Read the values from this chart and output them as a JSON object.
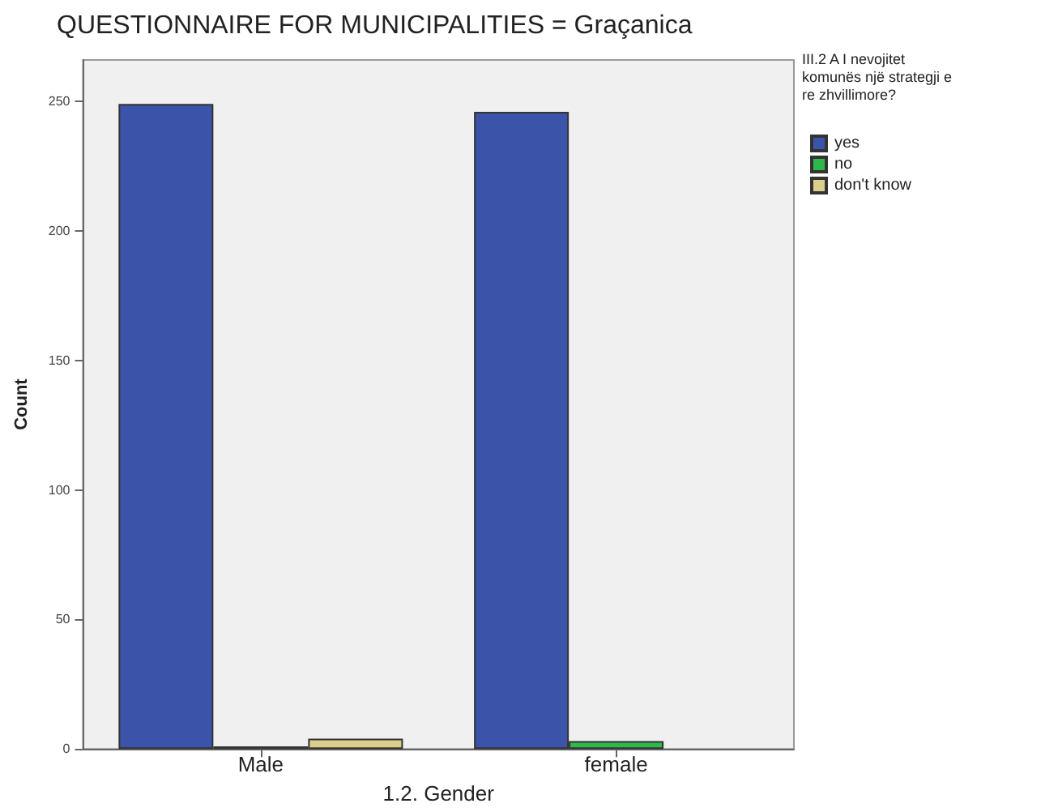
{
  "chart_data": {
    "type": "bar",
    "title": "QUESTIONNAIRE FOR MUNICIPALITIES = Graçanica",
    "xlabel": "1.2. Gender",
    "ylabel": "Count",
    "legend_title": "III.2 A I nevojitet\nkomunës një strategji e\nre zhvillimore?",
    "categories": [
      "Male",
      "female"
    ],
    "series": [
      {
        "name": "yes",
        "color": "#3b54a9",
        "values": [
          249,
          246
        ]
      },
      {
        "name": "no",
        "color": "#2fb84a",
        "values": [
          1,
          3
        ]
      },
      {
        "name": "don't know",
        "color": "#dccf8d",
        "values": [
          4,
          null
        ]
      }
    ],
    "ylim": [
      0,
      266
    ],
    "yticks": [
      0,
      50,
      100,
      150,
      200,
      250
    ],
    "grid": false,
    "legend": "top right"
  }
}
